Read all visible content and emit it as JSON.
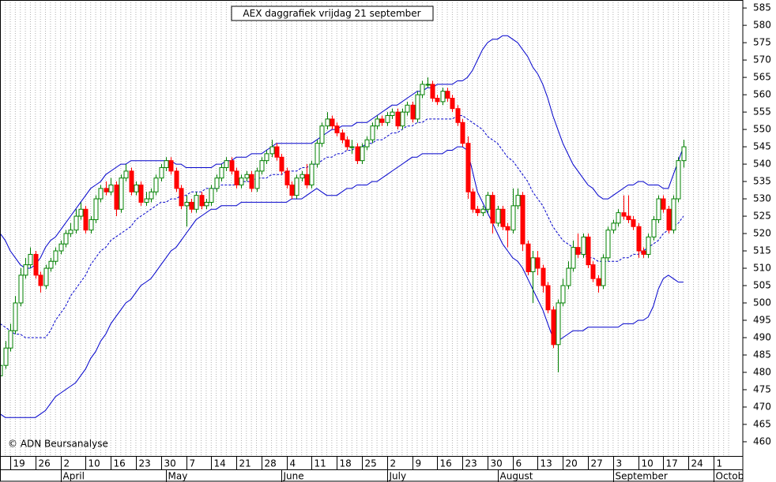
{
  "chart_data": {
    "type": "candlestick",
    "title": "AEX daggrafiek vrijdag 21 september",
    "annotation": "© ADN Beursanalyse",
    "up_color": "#008000",
    "down_color": "#ff0000",
    "band_color": "#0000cc",
    "ylim": [
      455.9,
      587.3
    ],
    "yticks": [
      460,
      465,
      470,
      475,
      480,
      485,
      490,
      495,
      500,
      505,
      510,
      515,
      520,
      525,
      530,
      535,
      540,
      545,
      550,
      555,
      560,
      565,
      570,
      575,
      580,
      585
    ],
    "grid": true,
    "categories": [
      null,
      null,
      "19",
      null,
      null,
      null,
      null,
      "26",
      null,
      null,
      null,
      null,
      "2",
      null,
      null,
      null,
      null,
      "10",
      null,
      null,
      null,
      null,
      "16",
      null,
      null,
      null,
      null,
      "23",
      null,
      null,
      null,
      null,
      "30",
      null,
      null,
      null,
      null,
      "7",
      null,
      null,
      null,
      null,
      "14",
      null,
      null,
      null,
      null,
      "21",
      null,
      null,
      null,
      null,
      "28",
      null,
      null,
      null,
      null,
      "4",
      null,
      null,
      null,
      null,
      "11",
      null,
      null,
      null,
      null,
      "18",
      null,
      null,
      null,
      null,
      "25",
      null,
      null,
      null,
      null,
      "2",
      null,
      null,
      null,
      null,
      "9",
      null,
      null,
      null,
      null,
      "16",
      null,
      null,
      null,
      null,
      "23",
      null,
      null,
      null,
      null,
      "30",
      null,
      null,
      null,
      null,
      "6",
      null,
      null,
      null,
      null,
      "13",
      null,
      null,
      null,
      null,
      "20",
      null,
      null,
      null,
      null,
      "27",
      null,
      null,
      null,
      null,
      "3",
      null,
      null,
      null,
      null,
      "10",
      null,
      null,
      null,
      null,
      "17",
      null,
      null,
      null,
      null,
      "24",
      null,
      null,
      null,
      null,
      "1",
      null,
      null,
      null
    ],
    "months": [
      null,
      null,
      null,
      null,
      null,
      null,
      null,
      null,
      null,
      null,
      null,
      null,
      "April",
      null,
      null,
      null,
      null,
      null,
      null,
      null,
      null,
      null,
      null,
      null,
      null,
      null,
      null,
      null,
      null,
      null,
      null,
      null,
      null,
      "May",
      null,
      null,
      null,
      null,
      null,
      null,
      null,
      null,
      null,
      null,
      null,
      null,
      null,
      null,
      null,
      null,
      null,
      null,
      null,
      null,
      null,
      null,
      "June",
      null,
      null,
      null,
      null,
      null,
      null,
      null,
      null,
      null,
      null,
      null,
      null,
      null,
      null,
      null,
      null,
      null,
      null,
      null,
      null,
      "July",
      null,
      null,
      null,
      null,
      null,
      null,
      null,
      null,
      null,
      null,
      null,
      null,
      null,
      null,
      null,
      null,
      null,
      null,
      null,
      null,
      null,
      "August",
      null,
      null,
      null,
      null,
      null,
      null,
      null,
      null,
      null,
      null,
      null,
      null,
      null,
      null,
      null,
      null,
      null,
      null,
      null,
      null,
      null,
      null,
      "September",
      null,
      null,
      null,
      null,
      null,
      null,
      null,
      null,
      null,
      null,
      null,
      null,
      null,
      null,
      null,
      null,
      null,
      null,
      null,
      "October",
      null,
      null,
      null
    ],
    "open": [
      479,
      482,
      487,
      492,
      500,
      508,
      511,
      514,
      508,
      505,
      510,
      512,
      515,
      517,
      520,
      521,
      525,
      527,
      521,
      524,
      530,
      533,
      532,
      534,
      527,
      536,
      538,
      532,
      534,
      529,
      530,
      532,
      536,
      539,
      541,
      538,
      533,
      528,
      529,
      527,
      531,
      528,
      529,
      533,
      536,
      539,
      541,
      538,
      534,
      536,
      537,
      533,
      538,
      541,
      543,
      545,
      542,
      538,
      534,
      531,
      536,
      537,
      534,
      540,
      546,
      551,
      553,
      551,
      549,
      547,
      545,
      545,
      541,
      545,
      547,
      551,
      553,
      552,
      554,
      555,
      551,
      555,
      557,
      553,
      560,
      563,
      563,
      559,
      558,
      561,
      559,
      556,
      552,
      546,
      532,
      527,
      526,
      527,
      531,
      523,
      527,
      522,
      521,
      528,
      531,
      517,
      509,
      513,
      510,
      505,
      498,
      488,
      500,
      505,
      510,
      516,
      514,
      519,
      511,
      507,
      505,
      513,
      521,
      523,
      526,
      525,
      524,
      522,
      515,
      514,
      519,
      524,
      530,
      527,
      521,
      530,
      541,
      null,
      null,
      null,
      null,
      null,
      null,
      null,
      null,
      null
    ],
    "high": [
      484,
      489,
      494,
      502,
      510,
      513,
      516,
      515,
      509,
      511,
      513,
      516,
      518,
      521,
      523,
      527,
      529,
      528,
      525,
      531,
      534,
      535,
      536,
      535,
      537,
      540,
      539,
      535,
      535,
      532,
      533,
      537,
      540,
      542,
      542,
      539,
      534,
      531,
      530,
      532,
      532,
      530,
      534,
      537,
      540,
      542,
      542,
      539,
      537,
      538,
      538,
      539,
      542,
      544,
      547,
      546,
      543,
      539,
      535,
      537,
      538,
      540,
      541,
      547,
      552,
      555,
      554,
      552,
      550,
      548,
      547,
      546,
      546,
      548,
      552,
      554,
      554,
      555,
      556,
      556,
      556,
      558,
      558,
      561,
      564,
      565,
      564,
      560,
      562,
      562,
      560,
      557,
      553,
      548,
      533,
      528,
      528,
      532,
      532,
      528,
      528,
      523,
      533,
      533,
      532,
      518,
      515,
      515,
      511,
      506,
      499,
      501,
      507,
      512,
      518,
      520,
      520,
      520,
      512,
      508,
      514,
      522,
      524,
      527,
      531,
      531,
      525,
      523,
      516,
      520,
      525,
      531,
      531,
      528,
      531,
      542,
      547,
      null,
      null,
      null,
      null,
      null,
      null,
      null,
      null,
      null
    ],
    "low": [
      477,
      481,
      486,
      491,
      499,
      507,
      510,
      507,
      503,
      504,
      509,
      511,
      514,
      516,
      519,
      520,
      524,
      520,
      520,
      523,
      529,
      531,
      531,
      525,
      526,
      535,
      531,
      531,
      528,
      528,
      529,
      531,
      535,
      538,
      537,
      532,
      527,
      522,
      526,
      526,
      527,
      527,
      528,
      532,
      535,
      538,
      537,
      533,
      533,
      535,
      532,
      532,
      537,
      540,
      542,
      541,
      537,
      533,
      530,
      530,
      535,
      533,
      533,
      539,
      545,
      550,
      550,
      548,
      546,
      544,
      543,
      540,
      540,
      544,
      546,
      550,
      551,
      551,
      553,
      550,
      550,
      554,
      552,
      552,
      559,
      562,
      558,
      557,
      557,
      558,
      555,
      551,
      545,
      530,
      526,
      525,
      525,
      526,
      520,
      522,
      521,
      516,
      520,
      527,
      515,
      508,
      500,
      508,
      503,
      497,
      487,
      480,
      499,
      504,
      509,
      513,
      513,
      510,
      506,
      503,
      504,
      512,
      520,
      522,
      524,
      523,
      521,
      513,
      513,
      513,
      518,
      523,
      526,
      520,
      520,
      529,
      539,
      null,
      null,
      null,
      null,
      null,
      null,
      null,
      null,
      null
    ],
    "close": [
      482,
      487,
      492,
      500,
      508,
      511,
      514,
      508,
      505,
      510,
      512,
      515,
      517,
      520,
      521,
      525,
      527,
      521,
      524,
      530,
      533,
      532,
      534,
      527,
      536,
      538,
      532,
      534,
      529,
      530,
      532,
      536,
      539,
      541,
      538,
      533,
      528,
      529,
      527,
      531,
      528,
      529,
      533,
      536,
      539,
      541,
      538,
      534,
      536,
      537,
      533,
      538,
      541,
      543,
      545,
      542,
      538,
      534,
      531,
      536,
      537,
      534,
      540,
      546,
      551,
      553,
      551,
      549,
      547,
      545,
      545,
      541,
      545,
      547,
      551,
      553,
      552,
      554,
      555,
      551,
      555,
      557,
      553,
      560,
      563,
      563,
      559,
      558,
      561,
      559,
      556,
      552,
      546,
      532,
      527,
      526,
      527,
      531,
      523,
      527,
      522,
      521,
      528,
      531,
      517,
      509,
      513,
      510,
      505,
      498,
      488,
      500,
      505,
      510,
      516,
      514,
      519,
      511,
      507,
      505,
      513,
      521,
      523,
      526,
      525,
      524,
      522,
      515,
      514,
      519,
      524,
      530,
      527,
      521,
      530,
      541,
      545,
      null,
      null,
      null,
      null,
      null,
      null,
      null,
      null,
      null
    ],
    "upper_band": [
      520,
      518,
      515,
      513,
      511,
      510,
      510,
      511,
      513,
      516,
      518,
      519,
      521,
      523,
      525,
      527,
      529,
      531,
      533,
      534,
      535,
      537,
      538,
      539,
      540,
      540,
      541,
      541,
      541,
      541,
      541,
      541,
      541,
      541,
      541,
      540,
      540,
      539,
      539,
      539,
      539,
      539,
      539,
      540,
      540,
      541,
      541,
      542,
      542,
      542,
      543,
      543,
      543,
      544,
      545,
      546,
      546,
      546,
      546,
      546,
      546,
      546,
      546,
      547,
      548,
      549,
      550,
      550,
      551,
      551,
      551,
      552,
      552,
      552,
      553,
      554,
      555,
      556,
      557,
      557,
      558,
      559,
      560,
      561,
      561,
      562,
      562,
      563,
      563,
      563,
      563,
      564,
      564,
      565,
      567,
      570,
      573,
      575,
      576,
      576,
      577,
      577,
      576,
      575,
      573,
      571,
      568,
      566,
      563,
      559,
      554,
      550,
      546,
      543,
      540,
      538,
      536,
      534,
      533,
      531,
      530,
      530,
      531,
      532,
      533,
      534,
      534,
      535,
      535,
      534,
      534,
      534,
      533,
      533,
      537,
      541,
      545,
      null,
      null,
      null,
      null,
      null,
      null,
      null,
      null,
      null
    ],
    "middle_band": [
      494,
      493,
      492,
      491,
      491,
      490,
      490,
      490,
      490,
      490,
      492,
      495,
      497,
      499,
      502,
      504,
      506,
      508,
      511,
      513,
      515,
      516,
      518,
      519,
      520,
      521,
      522,
      524,
      525,
      526,
      527,
      528,
      529,
      529,
      530,
      530,
      531,
      531,
      532,
      532,
      532,
      533,
      533,
      533,
      534,
      534,
      534,
      534,
      535,
      535,
      535,
      536,
      536,
      536,
      537,
      537,
      537,
      538,
      538,
      538,
      539,
      539,
      540,
      540,
      541,
      542,
      542,
      543,
      543,
      544,
      544,
      545,
      545,
      546,
      546,
      547,
      547,
      548,
      549,
      549,
      550,
      551,
      551,
      552,
      552,
      553,
      553,
      553,
      553,
      553,
      553,
      554,
      554,
      553,
      552,
      551,
      550,
      548,
      547,
      546,
      544,
      542,
      541,
      539,
      537,
      535,
      532,
      530,
      528,
      525,
      522,
      520,
      518,
      517,
      516,
      515,
      514,
      513,
      513,
      512,
      512,
      512,
      512,
      512,
      513,
      513,
      514,
      514,
      515,
      516,
      517,
      518,
      520,
      521,
      522,
      523,
      525,
      null,
      null,
      null,
      null,
      null,
      null,
      null,
      null,
      null
    ],
    "lower_band": [
      468,
      467,
      467,
      467,
      467,
      467,
      467,
      467,
      468,
      469,
      471,
      473,
      474,
      475,
      476,
      477,
      479,
      481,
      484,
      486,
      489,
      491,
      494,
      496,
      498,
      500,
      501,
      503,
      505,
      506,
      507,
      509,
      511,
      513,
      515,
      516,
      518,
      520,
      522,
      524,
      525,
      526,
      527,
      527,
      528,
      528,
      528,
      528,
      529,
      529,
      529,
      529,
      529,
      529,
      529,
      529,
      529,
      529,
      530,
      530,
      530,
      531,
      532,
      533,
      532,
      531,
      531,
      531,
      532,
      533,
      533,
      534,
      534,
      534,
      535,
      535,
      536,
      537,
      538,
      539,
      540,
      541,
      542,
      542,
      543,
      543,
      543,
      543,
      543,
      544,
      544,
      545,
      545,
      544,
      538,
      532,
      529,
      526,
      523,
      520,
      517,
      515,
      513,
      512,
      510,
      507,
      504,
      501,
      498,
      494,
      490,
      489,
      490,
      491,
      492,
      492,
      492,
      493,
      493,
      493,
      493,
      493,
      493,
      493,
      494,
      494,
      494,
      495,
      495,
      496,
      499,
      504,
      507,
      508,
      507,
      506,
      506,
      null,
      null,
      null,
      null,
      null,
      null,
      null,
      null,
      null
    ]
  }
}
